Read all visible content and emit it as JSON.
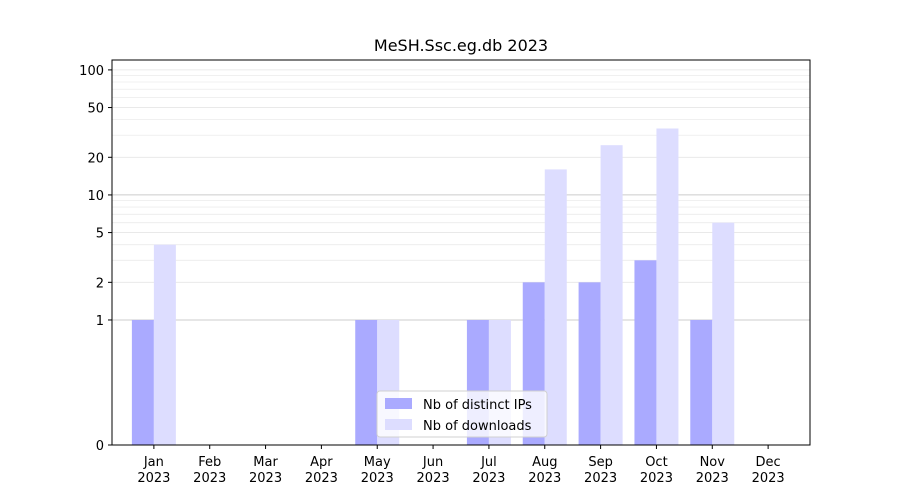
{
  "chart_data": {
    "type": "bar",
    "title": "MeSH.Ssc.eg.db 2023",
    "xlabel": "",
    "ylabel": "",
    "y_scale": "symlog",
    "y_ticks": [
      0,
      1,
      2,
      5,
      10,
      20,
      50,
      100
    ],
    "ylim": [
      0,
      120
    ],
    "grid": "horizontal",
    "legend_position": "bottom-center",
    "categories": [
      [
        "Jan",
        "2023"
      ],
      [
        "Feb",
        "2023"
      ],
      [
        "Mar",
        "2023"
      ],
      [
        "Apr",
        "2023"
      ],
      [
        "May",
        "2023"
      ],
      [
        "Jun",
        "2023"
      ],
      [
        "Jul",
        "2023"
      ],
      [
        "Aug",
        "2023"
      ],
      [
        "Sep",
        "2023"
      ],
      [
        "Oct",
        "2023"
      ],
      [
        "Nov",
        "2023"
      ],
      [
        "Dec",
        "2023"
      ]
    ],
    "series": [
      {
        "name": "Nb of distinct IPs",
        "color": "#aaaaff",
        "values": [
          1,
          0,
          0,
          0,
          1,
          0,
          1,
          2,
          2,
          3,
          1,
          0
        ]
      },
      {
        "name": "Nb of downloads",
        "color": "#ddddff",
        "values": [
          4,
          0,
          0,
          0,
          1,
          0,
          1,
          16,
          25,
          34,
          6,
          0
        ]
      }
    ]
  }
}
